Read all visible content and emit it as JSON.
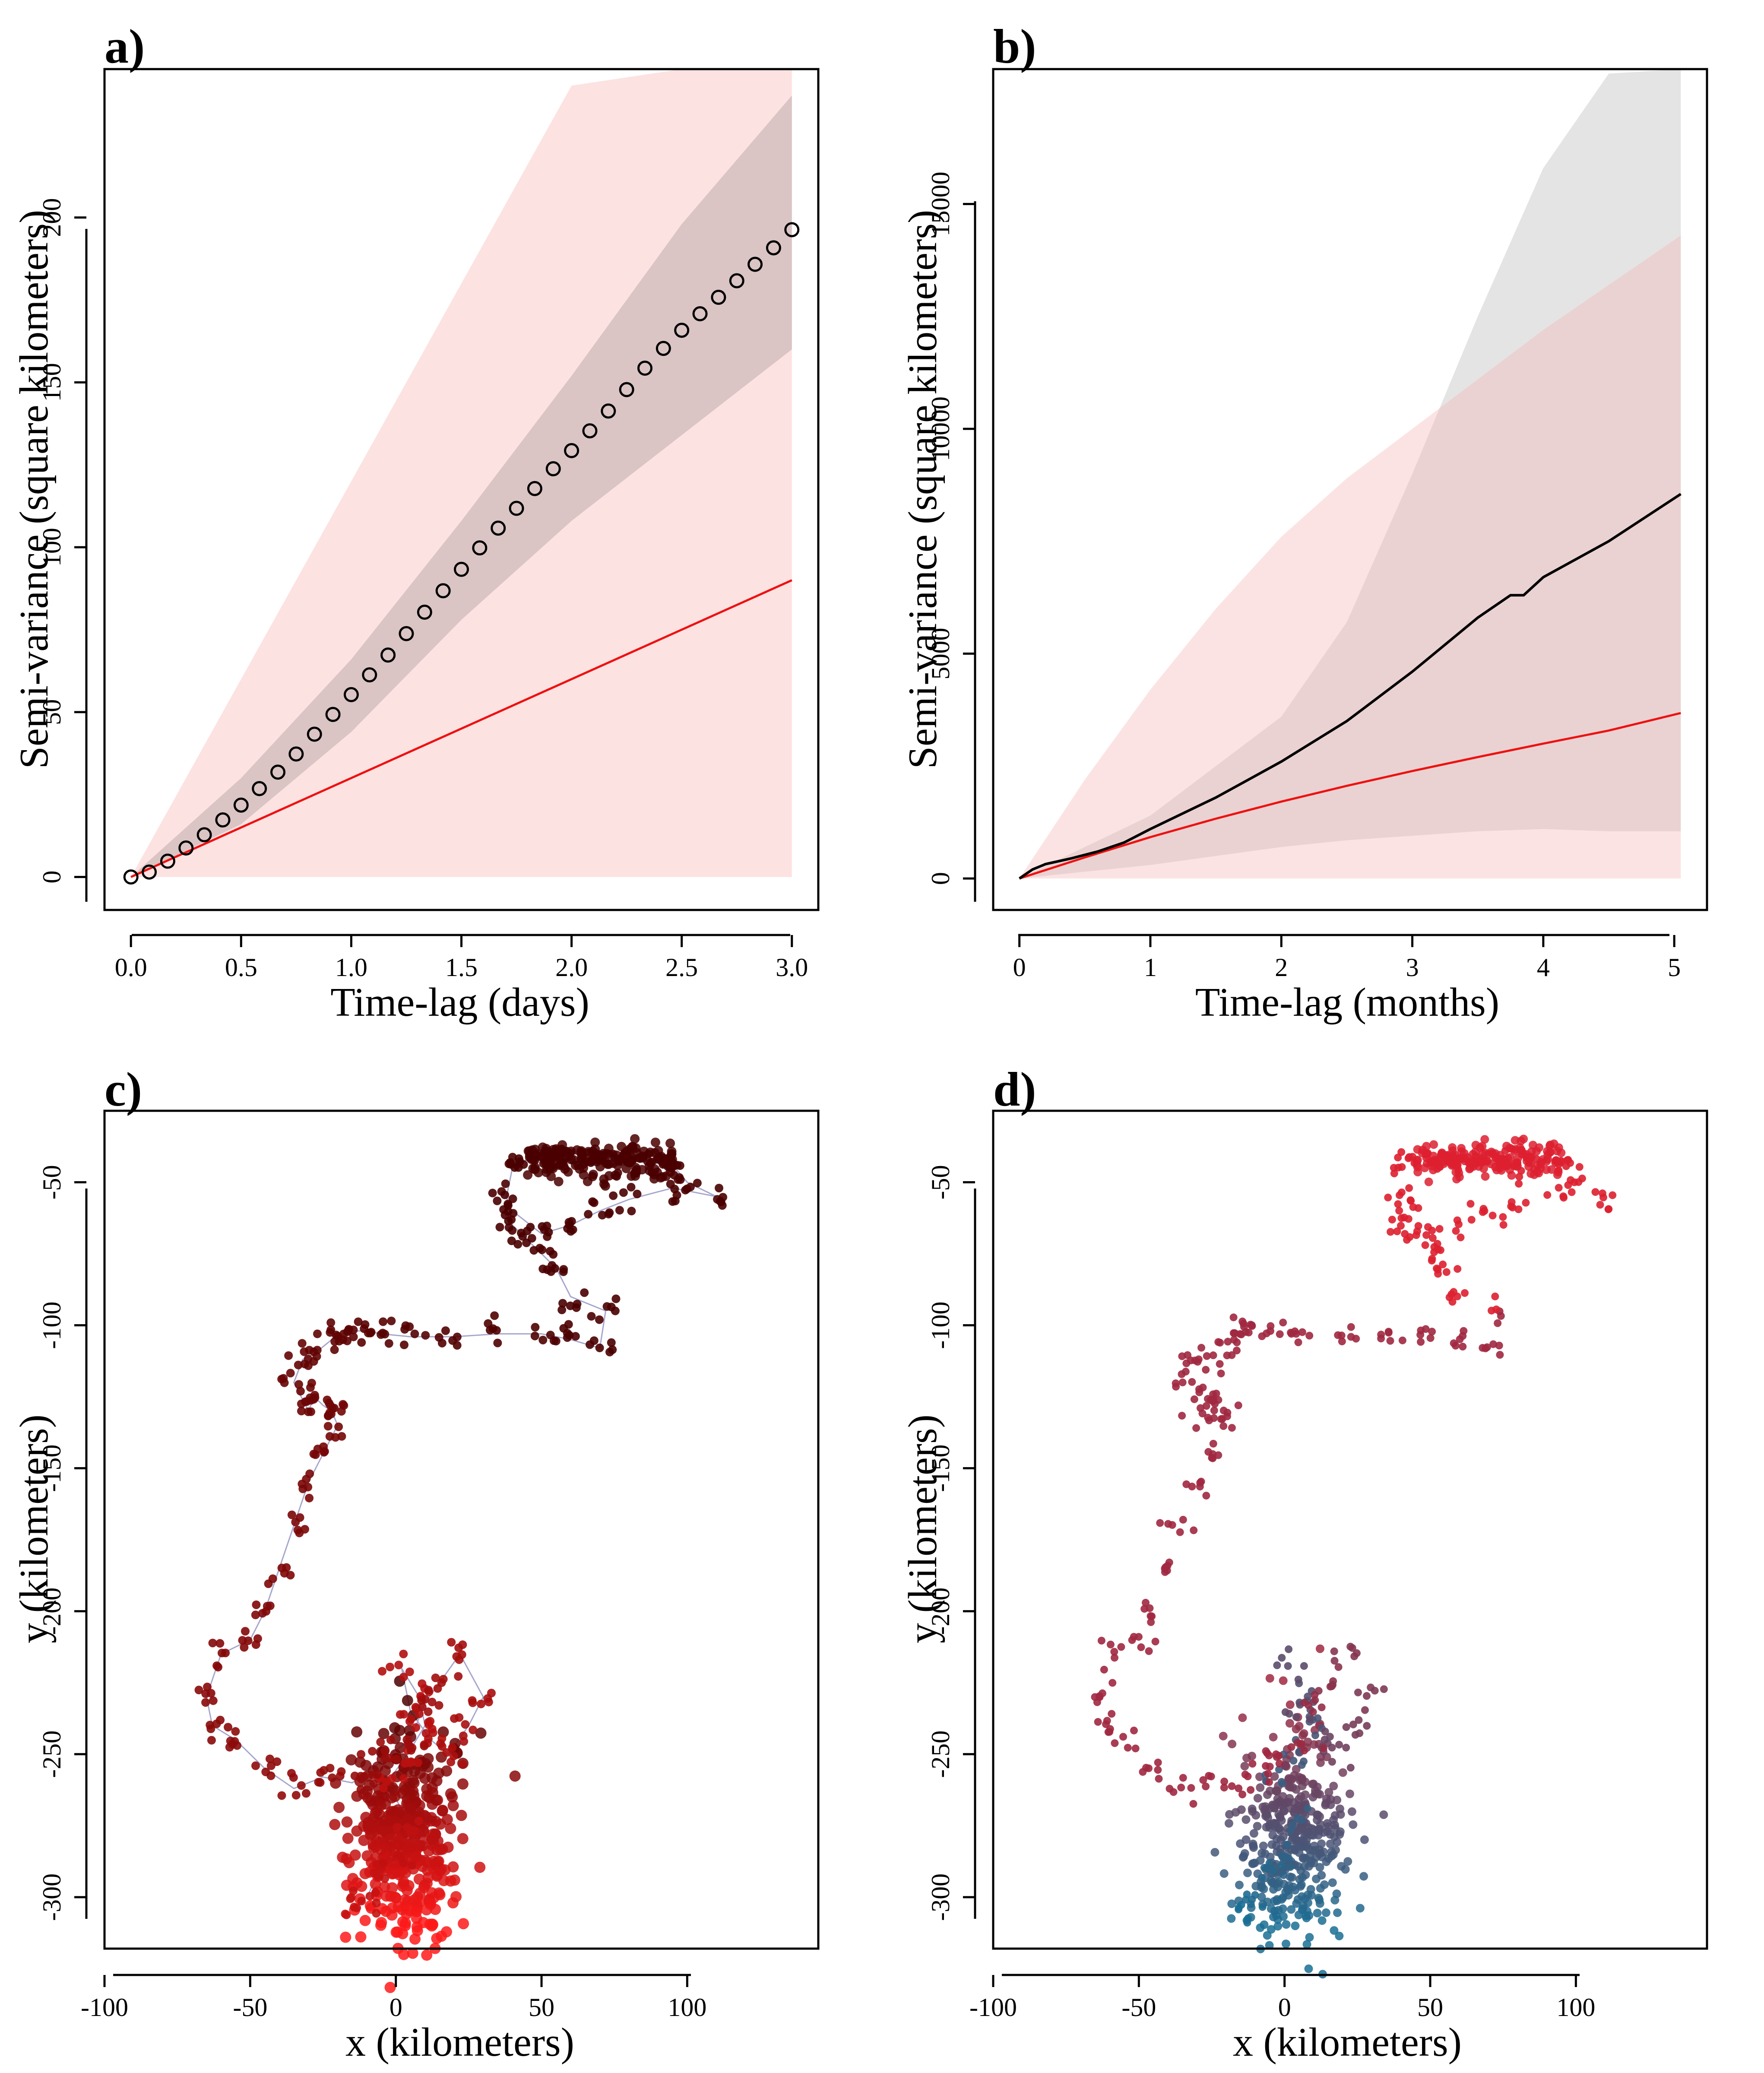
{
  "chart_data": [
    {
      "panel": "a)",
      "type": "scatter",
      "xlabel": "Time-lag (days)",
      "ylabel": "Semi-variance (square kilometers)",
      "xticks": [
        "0.0",
        "0.5",
        "1.0",
        "1.5",
        "2.0",
        "2.5",
        "3.0"
      ],
      "yticks": [
        "0",
        "50",
        "100",
        "150",
        "200"
      ],
      "xlim": [
        -0.12,
        3.12
      ],
      "ylim": [
        -10,
        245
      ],
      "empirical_points": {
        "x": [
          0,
          0.083,
          0.167,
          0.25,
          0.333,
          0.417,
          0.5,
          0.583,
          0.667,
          0.75,
          0.833,
          0.917,
          1.0,
          1.083,
          1.167,
          1.25,
          1.333,
          1.417,
          1.5,
          1.583,
          1.667,
          1.75,
          1.833,
          1.917,
          2.0,
          2.083,
          2.167,
          2.25,
          2.333,
          2.417,
          2.5,
          2.583,
          2.667,
          2.75,
          2.833,
          2.917,
          3.0
        ],
        "y": [
          0,
          1.5,
          4.8,
          8.8,
          12.8,
          17.3,
          21.8,
          26.8,
          31.8,
          37.3,
          43.3,
          49.3,
          55.3,
          61.3,
          67.3,
          73.8,
          80.3,
          86.8,
          93.3,
          99.8,
          105.8,
          111.8,
          117.8,
          123.8,
          129.3,
          135.3,
          141.3,
          147.8,
          154.3,
          160.3,
          165.8,
          170.8,
          175.8,
          180.8,
          185.8,
          190.8,
          196.3
        ]
      },
      "empirical_ci": {
        "x": [
          0,
          0.5,
          1.0,
          1.5,
          2.0,
          2.5,
          3.0
        ],
        "lower": [
          0,
          16,
          44,
          78,
          108,
          134,
          160
        ],
        "upper": [
          0,
          30,
          66,
          108,
          152,
          198,
          237
        ]
      },
      "model_line": {
        "x": [
          0,
          3.0
        ],
        "y": [
          0,
          90
        ]
      },
      "model_ci": {
        "x": [
          0,
          0.5,
          1.0,
          1.5,
          2.0,
          2.5,
          3.0
        ],
        "lower": [
          0,
          0,
          0,
          0,
          0,
          0,
          0
        ],
        "upper": [
          0,
          60,
          120,
          180,
          240,
          245,
          245
        ]
      },
      "colors": {
        "points": "#000000",
        "model": "#ee1111",
        "model_band": "#fde2e2",
        "empirical_band": "#b0a0a0"
      }
    },
    {
      "panel": "b)",
      "type": "line",
      "xlabel": "Time-lag (months)",
      "ylabel": "Semi-variance (square kilometers)",
      "xticks": [
        "0",
        "1",
        "2",
        "3",
        "4",
        "5"
      ],
      "yticks": [
        "0",
        "5000",
        "10000",
        "15000"
      ],
      "xlim": [
        -0.2,
        5.25
      ],
      "ylim": [
        -700,
        18000
      ],
      "empirical_line": {
        "x": [
          0,
          0.1,
          0.2,
          0.4,
          0.6,
          0.8,
          1.0,
          1.5,
          2.0,
          2.5,
          3.0,
          3.5,
          3.75,
          3.85,
          4.0,
          4.5,
          5.05
        ],
        "y": [
          0,
          200,
          320,
          450,
          600,
          800,
          1100,
          1800,
          2600,
          3500,
          4600,
          5800,
          6300,
          6300,
          6700,
          7500,
          8550
        ]
      },
      "empirical_ci": {
        "x": [
          0,
          1,
          2,
          2.5,
          3,
          3.5,
          4,
          4.5,
          5.05
        ],
        "lower": [
          0,
          300,
          700,
          850,
          950,
          1050,
          1100,
          1050,
          1050
        ],
        "upper": [
          0,
          1400,
          3600,
          5700,
          9000,
          12500,
          15800,
          17900,
          18000
        ]
      },
      "model_line": {
        "x": [
          0,
          0.5,
          1,
          1.5,
          2,
          2.5,
          3,
          3.5,
          4,
          4.5,
          5.05
        ],
        "y": [
          0,
          470,
          920,
          1330,
          1710,
          2060,
          2390,
          2700,
          3000,
          3290,
          3680
        ]
      },
      "model_ci": {
        "x": [
          0,
          0.5,
          1,
          1.5,
          2,
          2.5,
          3,
          3.5,
          4,
          4.5,
          5.05
        ],
        "lower": [
          0,
          0,
          0,
          0,
          0,
          0,
          0,
          0,
          0,
          0,
          0
        ],
        "upper": [
          0,
          2200,
          4200,
          6000,
          7600,
          8900,
          10000,
          11100,
          12200,
          13200,
          14300
        ]
      },
      "colors": {
        "line": "#000000",
        "model": "#ee1111",
        "model_band": "#fde2e2",
        "empirical_band": "#e4e4e4"
      }
    },
    {
      "panel": "c)",
      "type": "scatter",
      "xlabel": "x (kilometers)",
      "ylabel": "y (kilometers)",
      "xticks": [
        "-100",
        "-50",
        "0",
        "50",
        "100"
      ],
      "yticks": [
        "-50",
        "-100",
        "-150",
        "-200",
        "-250",
        "-300"
      ],
      "xlim": [
        -100,
        145
      ],
      "ylim": [
        -318,
        -25
      ],
      "track": {
        "x": [
          -15,
          -10,
          -5,
          0,
          5,
          -3,
          4,
          10,
          8,
          2,
          5,
          12,
          18,
          25,
          30,
          22,
          15,
          10,
          5,
          -2,
          -8,
          -15,
          -25,
          -35,
          -45,
          -55,
          -63,
          -65,
          -60,
          -50,
          -45,
          -40,
          -35,
          -30,
          -25,
          -20,
          -22,
          -25,
          -28,
          -30,
          -35,
          -32,
          -28,
          -22,
          -18,
          -15,
          -10,
          -5,
          5,
          20,
          35,
          50,
          60,
          70,
          72,
          60,
          55,
          50,
          45,
          40,
          38,
          40,
          45,
          55,
          65,
          75,
          85,
          95,
          100,
          110,
          95,
          80,
          70,
          60,
          50,
          40
        ],
        "y": [
          -305,
          -300,
          -290,
          -285,
          -275,
          -260,
          -250,
          -240,
          -230,
          -220,
          -235,
          -245,
          -250,
          -240,
          -230,
          -215,
          -225,
          -232,
          -245,
          -250,
          -255,
          -260,
          -258,
          -262,
          -255,
          -245,
          -240,
          -230,
          -215,
          -210,
          -200,
          -185,
          -170,
          -155,
          -145,
          -135,
          -130,
          -128,
          -125,
          -130,
          -120,
          -112,
          -110,
          -105,
          -103,
          -102,
          -102,
          -103,
          -104,
          -104,
          -103,
          -103,
          -105,
          -108,
          -95,
          -90,
          -80,
          -75,
          -70,
          -65,
          -55,
          -45,
          -42,
          -42,
          -42,
          -42,
          -43,
          -44,
          -50,
          -55,
          -52,
          -56,
          -60,
          -65,
          -68,
          -60
        ]
      },
      "colors": {
        "early": "#ff1a1a",
        "late": "#4a0000",
        "path": "#9090c0"
      }
    },
    {
      "panel": "d)",
      "type": "scatter",
      "xlabel": "x (kilometers)",
      "ylabel": "y (kilometers)",
      "xticks": [
        "-100",
        "-50",
        "0",
        "50",
        "100"
      ],
      "yticks": [
        "-50",
        "-100",
        "-150",
        "-200",
        "-250",
        "-300"
      ],
      "xlim": [
        -100,
        145
      ],
      "ylim": [
        -318,
        -25
      ],
      "colors": {
        "cluster_a": "#dd2030",
        "cluster_b": "#a02840",
        "cluster_c": "#1a6e94"
      }
    }
  ]
}
